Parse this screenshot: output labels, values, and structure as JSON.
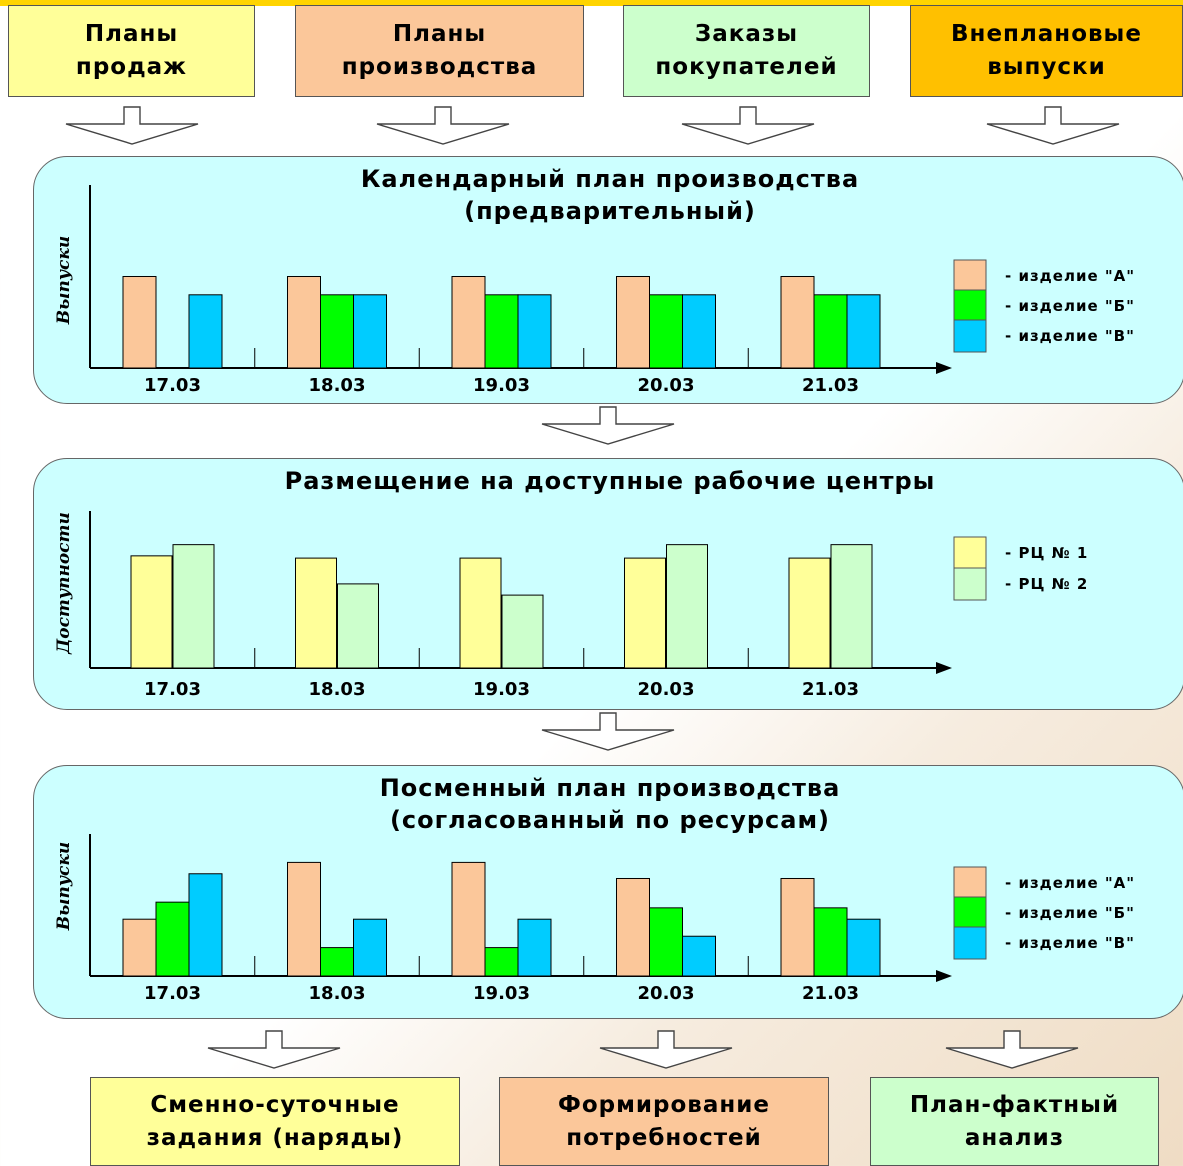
{
  "top_boxes": [
    {
      "line1": "Планы",
      "line2": "продаж",
      "color": "#ffff99"
    },
    {
      "line1": "Планы",
      "line2": "производства",
      "color": "#fbc79a"
    },
    {
      "line1": "Заказы",
      "line2": "покупателей",
      "color": "#ccffcc"
    },
    {
      "line1": "Внеплановые",
      "line2": "выпуски",
      "color": "#ffc000"
    }
  ],
  "bottom_boxes": [
    {
      "line1": "Сменно-суточные",
      "line2": "задания (наряды)",
      "color": "#ffff99"
    },
    {
      "line1": "Формирование",
      "line2": "потребностей",
      "color": "#fbc79a"
    },
    {
      "line1": "План-фактный",
      "line2": "анализ",
      "color": "#ccffcc"
    }
  ],
  "panel1": {
    "title1": "Календарный план производства",
    "title2": "(предварительный)"
  },
  "panel2": {
    "title1": "Размещение на доступные рабочие центры"
  },
  "panel3": {
    "title1": "Посменный план производства",
    "title2": "(согласованный по ресурсам)"
  },
  "chart_data": [
    {
      "type": "bar",
      "title": "Календарный план производства (предварительный)",
      "ylabel": "Выпуски",
      "categories": [
        "17.03",
        "18.03",
        "19.03",
        "20.03",
        "21.03"
      ],
      "series": [
        {
          "name": "- изделие \"А\"",
          "color": "#fbc79a",
          "values": [
            10,
            10,
            10,
            10,
            10
          ]
        },
        {
          "name": "- изделие \"Б\"",
          "color": "#00ff00",
          "values": [
            0,
            8,
            8,
            8,
            8
          ]
        },
        {
          "name": "- изделие \"В\"",
          "color": "#00ccff",
          "values": [
            8,
            8,
            8,
            8,
            8
          ]
        }
      ],
      "ylim": [
        0,
        20
      ],
      "legend": "right"
    },
    {
      "type": "bar",
      "title": "Размещение на доступные рабочие центры",
      "ylabel": "Доступности",
      "categories": [
        "17.03",
        "18.03",
        "19.03",
        "20.03",
        "21.03"
      ],
      "series": [
        {
          "name": "- РЦ № 1",
          "color": "#ffff99",
          "values": [
            10,
            9.8,
            9.8,
            9.8,
            9.8
          ]
        },
        {
          "name": "- РЦ № 2",
          "color": "#ccffcc",
          "values": [
            11,
            7.5,
            6.5,
            11,
            11
          ]
        }
      ],
      "ylim": [
        0,
        14
      ],
      "legend": "right"
    },
    {
      "type": "bar",
      "title": "Посменный план производства (согласованный по ресурсам)",
      "ylabel": "Выпуски",
      "categories": [
        "17.03",
        "18.03",
        "19.03",
        "20.03",
        "21.03"
      ],
      "series": [
        {
          "name": "- изделие \"А\"",
          "color": "#fbc79a",
          "values": [
            6,
            12,
            12,
            10.3,
            10.3
          ]
        },
        {
          "name": "- изделие \"Б\"",
          "color": "#00ff00",
          "values": [
            7.8,
            3,
            3,
            7.2,
            7.2
          ]
        },
        {
          "name": "- изделие \"В\"",
          "color": "#00ccff",
          "values": [
            10.8,
            6,
            6,
            4.2,
            6
          ]
        }
      ],
      "ylim": [
        0,
        15
      ],
      "legend": "right"
    }
  ]
}
